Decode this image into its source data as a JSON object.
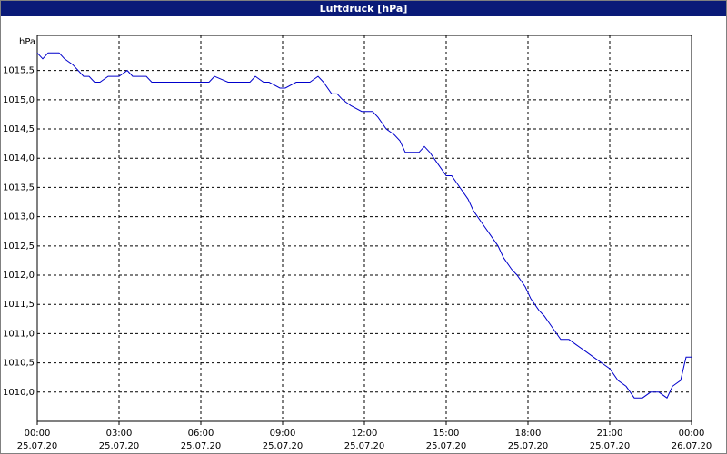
{
  "window": {
    "title": "Luftdruck [hPa]"
  },
  "chart_data": {
    "type": "line",
    "title": "Luftdruck [hPa]",
    "ylabel": "hPa",
    "ylim": [
      1009.5,
      1016.1
    ],
    "y_ticks": [
      "1015,5",
      "1015,0",
      "1014,5",
      "1014,0",
      "1013,5",
      "1013,0",
      "1012,5",
      "1012,0",
      "1011,5",
      "1011,0",
      "1010,5",
      "1010,0"
    ],
    "y_tick_values": [
      1015.5,
      1015.0,
      1014.5,
      1014.0,
      1013.5,
      1013.0,
      1012.5,
      1012.0,
      1011.5,
      1011.0,
      1010.5,
      1010.0
    ],
    "x_ticks": [
      {
        "time": "00:00",
        "date": "25.07.20",
        "hour": 0
      },
      {
        "time": "03:00",
        "date": "25.07.20",
        "hour": 3
      },
      {
        "time": "06:00",
        "date": "25.07.20",
        "hour": 6
      },
      {
        "time": "09:00",
        "date": "25.07.20",
        "hour": 9
      },
      {
        "time": "12:00",
        "date": "25.07.20",
        "hour": 12
      },
      {
        "time": "15:00",
        "date": "25.07.20",
        "hour": 15
      },
      {
        "time": "18:00",
        "date": "25.07.20",
        "hour": 18
      },
      {
        "time": "21:00",
        "date": "25.07.20",
        "hour": 21
      },
      {
        "time": "00:00",
        "date": "26.07.20",
        "hour": 24
      }
    ],
    "grid": true,
    "series": [
      {
        "color": "#0000cc",
        "x": [
          0,
          0.2,
          0.4,
          0.8,
          1.0,
          1.3,
          1.5,
          1.7,
          1.9,
          2.1,
          2.3,
          2.6,
          2.8,
          3.0,
          3.3,
          3.5,
          3.8,
          4.0,
          4.2,
          5.0,
          6.0,
          6.3,
          6.5,
          7.0,
          7.8,
          8.0,
          8.3,
          8.5,
          8.9,
          9.1,
          9.5,
          9.8,
          10.0,
          10.3,
          10.5,
          10.8,
          11.0,
          11.2,
          11.5,
          11.9,
          12.1,
          12.3,
          12.5,
          12.8,
          13.1,
          13.3,
          13.5,
          14.0,
          14.2,
          14.4,
          14.7,
          15.0,
          15.2,
          15.5,
          15.8,
          16.0,
          16.3,
          16.6,
          16.9,
          17.1,
          17.4,
          17.6,
          17.9,
          18.1,
          18.4,
          18.6,
          18.9,
          19.2,
          19.5,
          19.8,
          20.1,
          20.4,
          20.7,
          21.0,
          21.3,
          21.6,
          21.9,
          22.2,
          22.5,
          22.8,
          23.1,
          23.3,
          23.6,
          23.8,
          24.0
        ],
        "y": [
          1015.8,
          1015.7,
          1015.8,
          1015.8,
          1015.7,
          1015.6,
          1015.5,
          1015.4,
          1015.4,
          1015.3,
          1015.3,
          1015.4,
          1015.4,
          1015.4,
          1015.5,
          1015.4,
          1015.4,
          1015.4,
          1015.3,
          1015.3,
          1015.3,
          1015.3,
          1015.4,
          1015.3,
          1015.3,
          1015.4,
          1015.3,
          1015.3,
          1015.2,
          1015.2,
          1015.3,
          1015.3,
          1015.3,
          1015.4,
          1015.3,
          1015.1,
          1015.1,
          1015.0,
          1014.9,
          1014.8,
          1014.8,
          1014.8,
          1014.7,
          1014.5,
          1014.4,
          1014.3,
          1014.1,
          1014.1,
          1014.2,
          1014.1,
          1013.9,
          1013.7,
          1013.7,
          1013.5,
          1013.3,
          1013.1,
          1012.9,
          1012.7,
          1012.5,
          1012.3,
          1012.1,
          1012.0,
          1011.8,
          1011.6,
          1011.4,
          1011.3,
          1011.1,
          1010.9,
          1010.9,
          1010.8,
          1010.7,
          1010.6,
          1010.5,
          1010.4,
          1010.2,
          1010.1,
          1009.9,
          1009.9,
          1010.0,
          1010.0,
          1009.9,
          1010.1,
          1010.2,
          1010.6,
          1010.6
        ]
      }
    ]
  }
}
